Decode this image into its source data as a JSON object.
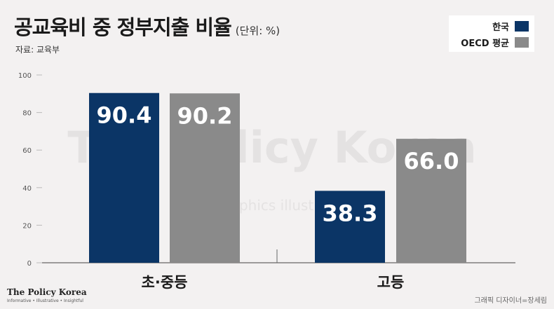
{
  "header": {
    "title": "공교육비 중 정부지출 비율",
    "unit": "(단위: %)",
    "source": "자료: 교육부"
  },
  "colors": {
    "korea": "#0b3566",
    "oecd": "#8a8a8a",
    "background": "#f3f1f1"
  },
  "watermark": {
    "main": "The Policy Korea",
    "sub": "Infographics illustration"
  },
  "footer": {
    "logo": "The Policy Korea",
    "tagline": "Informative • Illustrative • Insightful",
    "credit": "그래픽 디자이너=장세림"
  },
  "chart_data": {
    "type": "bar",
    "categories": [
      "초·중등",
      "고등"
    ],
    "series": [
      {
        "name": "한국",
        "values": [
          90.4,
          38.3
        ]
      },
      {
        "name": "OECD 평균",
        "values": [
          90.2,
          66.0
        ]
      }
    ],
    "data_labels": [
      [
        "90.4",
        "38.3"
      ],
      [
        "90.2",
        "66.0"
      ]
    ],
    "ylim": [
      0,
      100
    ],
    "yticks": [
      0,
      20,
      40,
      60,
      80,
      100
    ],
    "legend_position": "top-right",
    "grid": false
  }
}
